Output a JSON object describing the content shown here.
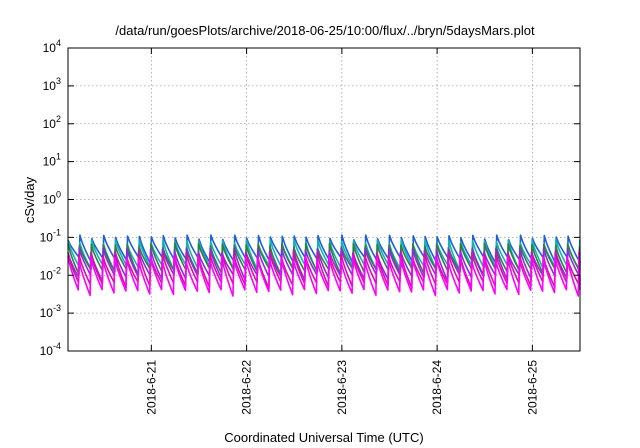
{
  "chart_data": {
    "type": "line",
    "title": "/data/run/goesPlots/archive/2018-06-25/10:00/flux/../bryn/5daysMars.plot",
    "xlabel": "Coordinated Universal Time (UTC)",
    "ylabel": "cSv/day",
    "yscale": "log",
    "ylim": [
      0.0001,
      10000
    ],
    "yticks": [
      {
        "base": "10",
        "exp": "-4",
        "value": 0.0001
      },
      {
        "base": "10",
        "exp": "-3",
        "value": 0.001
      },
      {
        "base": "10",
        "exp": "-2",
        "value": 0.01
      },
      {
        "base": "10",
        "exp": "-1",
        "value": 0.1
      },
      {
        "base": "10",
        "exp": "0",
        "value": 1
      },
      {
        "base": "10",
        "exp": "1",
        "value": 10
      },
      {
        "base": "10",
        "exp": "2",
        "value": 100
      },
      {
        "base": "10",
        "exp": "3",
        "value": 1000
      },
      {
        "base": "10",
        "exp": "4",
        "value": 10000
      }
    ],
    "xlim": [
      "2018-06-20T03:00",
      "2018-06-25T12:00"
    ],
    "xticks": [
      {
        "label": "2018-6-21",
        "value": "2018-06-21T00:00"
      },
      {
        "label": "2018-6-22",
        "value": "2018-06-22T00:00"
      },
      {
        "label": "2018-6-23",
        "value": "2018-06-23T00:00"
      },
      {
        "label": "2018-6-24",
        "value": "2018-06-24T00:00"
      },
      {
        "label": "2018-6-25",
        "value": "2018-06-25T00:00"
      }
    ],
    "grid": true,
    "sawtooth_period_hours": 3,
    "series": [
      {
        "color": "#1e5fd8",
        "peak": 0.1,
        "trough": 0.024
      },
      {
        "color": "#10b2b2",
        "peak": 0.075,
        "trough": 0.015
      },
      {
        "color": "#2f7f3f",
        "peak": 0.06,
        "trough": 0.012
      },
      {
        "color": "#8a2be2",
        "peak": 0.045,
        "trough": 0.0085
      },
      {
        "color": "#d4149a",
        "peak": 0.035,
        "trough": 0.0055
      },
      {
        "color": "#ff00ff",
        "peak": 0.028,
        "trough": 0.0035
      }
    ]
  }
}
